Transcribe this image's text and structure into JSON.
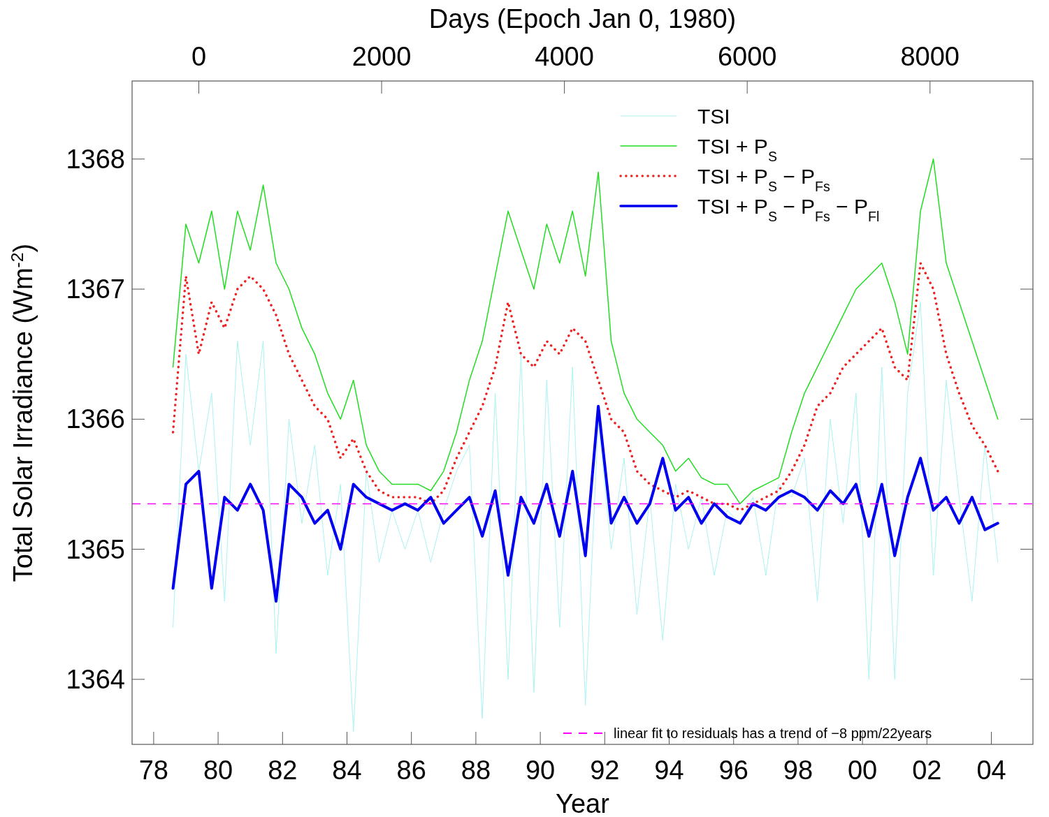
{
  "chart_data": {
    "type": "line",
    "xlabel": "Year",
    "x2label": "Days (Epoch Jan 0, 1980)",
    "ylabel": "Total Solar Irradiance (Wm$^{-2}$)",
    "x": [
      1978.6,
      1979.0,
      1979.4,
      1979.8,
      1980.2,
      1980.6,
      1981.0,
      1981.4,
      1981.8,
      1982.2,
      1982.6,
      1983.0,
      1983.4,
      1983.8,
      1984.2,
      1984.6,
      1985.0,
      1985.4,
      1985.8,
      1986.2,
      1986.6,
      1987.0,
      1987.4,
      1987.8,
      1988.2,
      1988.6,
      1989.0,
      1989.4,
      1989.8,
      1990.2,
      1990.6,
      1991.0,
      1991.4,
      1991.8,
      1992.2,
      1992.6,
      1993.0,
      1993.4,
      1993.8,
      1994.2,
      1994.6,
      1995.0,
      1995.4,
      1995.8,
      1996.2,
      1996.6,
      1997.0,
      1997.4,
      1997.8,
      1998.2,
      1998.6,
      1999.0,
      1999.4,
      1999.8,
      2000.2,
      2000.6,
      2001.0,
      2001.4,
      2001.8,
      2002.2,
      2002.6,
      2003.0,
      2003.4,
      2003.8,
      2004.2
    ],
    "series": [
      {
        "name": "TSI",
        "color": "#aaf2f2",
        "line_style": "solid",
        "values": [
          1364.4,
          1366.5,
          1365.6,
          1366.2,
          1364.6,
          1366.6,
          1365.8,
          1366.6,
          1364.2,
          1366.0,
          1365.2,
          1365.8,
          1364.8,
          1365.5,
          1363.6,
          1365.6,
          1364.9,
          1365.3,
          1365.0,
          1365.3,
          1364.9,
          1365.3,
          1365.6,
          1365.8,
          1363.7,
          1366.2,
          1364.0,
          1366.5,
          1363.9,
          1366.3,
          1364.4,
          1366.4,
          1363.8,
          1366.0,
          1365.0,
          1365.7,
          1364.5,
          1365.4,
          1364.3,
          1365.5,
          1365.0,
          1365.4,
          1364.8,
          1365.3,
          1365.2,
          1365.4,
          1364.8,
          1365.5,
          1365.4,
          1365.7,
          1364.6,
          1366.0,
          1365.2,
          1366.2,
          1364.0,
          1366.4,
          1364.0,
          1366.2,
          1366.9,
          1364.8,
          1366.3,
          1365.4,
          1364.6,
          1365.8,
          1364.9
        ]
      },
      {
        "name": "TSI + P$_{S}$",
        "color": "#22dd22",
        "line_style": "solid",
        "values": [
          1366.4,
          1367.5,
          1367.2,
          1367.6,
          1367.0,
          1367.6,
          1367.3,
          1367.8,
          1367.2,
          1367.0,
          1366.7,
          1366.5,
          1366.2,
          1366.0,
          1366.3,
          1365.8,
          1365.6,
          1365.5,
          1365.5,
          1365.5,
          1365.45,
          1365.6,
          1365.9,
          1366.3,
          1366.6,
          1367.1,
          1367.6,
          1367.3,
          1367.0,
          1367.5,
          1367.2,
          1367.6,
          1367.1,
          1367.9,
          1366.6,
          1366.2,
          1366.0,
          1365.9,
          1365.8,
          1365.6,
          1365.7,
          1365.55,
          1365.5,
          1365.5,
          1365.35,
          1365.45,
          1365.5,
          1365.55,
          1365.9,
          1366.2,
          1366.4,
          1366.6,
          1366.8,
          1367.0,
          1367.1,
          1367.2,
          1366.9,
          1366.5,
          1367.6,
          1368.0,
          1367.2,
          1366.9,
          1366.6,
          1366.3,
          1366.0
        ]
      },
      {
        "name": "TSI + P$_{S}$ − P$_{Fs}$",
        "color": "#ee2222",
        "line_style": "dotted",
        "values": [
          1365.9,
          1367.1,
          1366.5,
          1366.9,
          1366.7,
          1367.0,
          1367.1,
          1367.0,
          1366.8,
          1366.5,
          1366.3,
          1366.1,
          1366.0,
          1365.7,
          1365.85,
          1365.6,
          1365.45,
          1365.4,
          1365.4,
          1365.4,
          1365.35,
          1365.45,
          1365.7,
          1365.9,
          1366.1,
          1366.4,
          1366.9,
          1366.5,
          1366.4,
          1366.6,
          1366.5,
          1366.7,
          1366.6,
          1366.3,
          1366.0,
          1365.9,
          1365.6,
          1365.5,
          1365.45,
          1365.4,
          1365.45,
          1365.4,
          1365.35,
          1365.35,
          1365.3,
          1365.35,
          1365.4,
          1365.45,
          1365.6,
          1365.8,
          1366.1,
          1366.2,
          1366.4,
          1366.5,
          1366.6,
          1366.7,
          1366.4,
          1366.3,
          1367.2,
          1367.0,
          1366.5,
          1366.2,
          1365.95,
          1365.8,
          1365.6
        ]
      },
      {
        "name": "TSI + P$_{S}$ − P$_{Fs}$ − P$_{Fl}$",
        "color": "#0000ee",
        "line_style": "solid",
        "values": [
          1364.7,
          1365.5,
          1365.6,
          1364.7,
          1365.4,
          1365.3,
          1365.5,
          1365.3,
          1364.6,
          1365.5,
          1365.4,
          1365.2,
          1365.3,
          1365.0,
          1365.5,
          1365.4,
          1365.35,
          1365.3,
          1365.35,
          1365.3,
          1365.4,
          1365.2,
          1365.3,
          1365.4,
          1365.1,
          1365.45,
          1364.8,
          1365.4,
          1365.2,
          1365.5,
          1365.1,
          1365.6,
          1364.95,
          1366.1,
          1365.2,
          1365.4,
          1365.2,
          1365.35,
          1365.7,
          1365.3,
          1365.4,
          1365.2,
          1365.35,
          1365.25,
          1365.2,
          1365.35,
          1365.3,
          1365.4,
          1365.45,
          1365.4,
          1365.3,
          1365.45,
          1365.35,
          1365.5,
          1365.1,
          1365.5,
          1364.95,
          1365.4,
          1365.7,
          1365.3,
          1365.4,
          1365.2,
          1365.4,
          1365.15,
          1365.2
        ]
      }
    ],
    "xlim": [
      1977.33,
      2005.29
    ],
    "xticks": [
      {
        "value": 1978,
        "label": "78"
      },
      {
        "value": 1980,
        "label": "80"
      },
      {
        "value": 1982,
        "label": "82"
      },
      {
        "value": 1984,
        "label": "84"
      },
      {
        "value": 1986,
        "label": "86"
      },
      {
        "value": 1988,
        "label": "88"
      },
      {
        "value": 1990,
        "label": "90"
      },
      {
        "value": 1992,
        "label": "92"
      },
      {
        "value": 1994,
        "label": "94"
      },
      {
        "value": 1996,
        "label": "96"
      },
      {
        "value": 1998,
        "label": "98"
      },
      {
        "value": 2000,
        "label": "00"
      },
      {
        "value": 2002,
        "label": "02"
      },
      {
        "value": 2004,
        "label": "04"
      }
    ],
    "x2lim": [
      -730,
      9126
    ],
    "x2ticks": [
      0,
      2000,
      4000,
      6000,
      8000
    ],
    "ylim": [
      1363.5,
      1368.6
    ],
    "yticks": [
      1364,
      1365,
      1366,
      1367,
      1368
    ],
    "ref_lines": [
      {
        "axis": "y",
        "value": 1365.35,
        "label": "linear fit to residuals has a trend of   −8 ppm/22years",
        "color": "#ff00ff",
        "line_style": "dashed"
      }
    ],
    "legend": "right",
    "grid": false
  }
}
